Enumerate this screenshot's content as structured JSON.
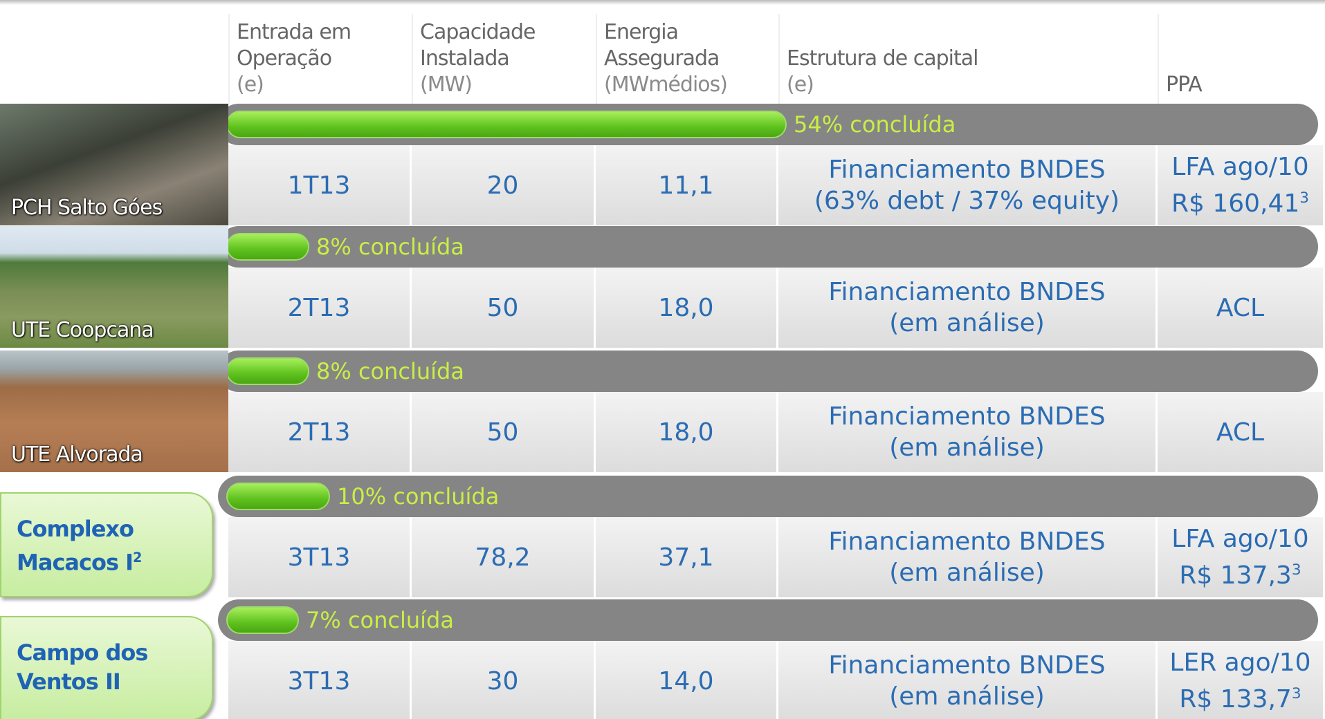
{
  "header": {
    "columns": [
      {
        "title": [
          "Entrada em",
          "Operação"
        ],
        "unit": "(e)"
      },
      {
        "title": [
          "Capacidade",
          "Instalada"
        ],
        "unit": "(MW)"
      },
      {
        "title": [
          "Energia",
          "Assegurada"
        ],
        "unit": "(MWmédios)"
      },
      {
        "title": [
          "Estrutura de capital"
        ],
        "unit": "(e)"
      },
      {
        "title": [
          "PPA"
        ]
      }
    ]
  },
  "rows": [
    {
      "name": [
        "PCH Salto Góes"
      ],
      "progress": 54,
      "progress_label": "54% concluída",
      "cells": [
        [
          "1T13"
        ],
        [
          "20"
        ],
        [
          "11,1"
        ],
        [
          "Financiamento BNDES",
          "(63% debt / 37% equity)"
        ],
        [
          "LFA ago/10",
          "R$ 160,41"
        ]
      ],
      "ppa_note": "3"
    },
    {
      "name": [
        "UTE Coopcana"
      ],
      "progress": 8,
      "progress_label": "8% concluída",
      "cells": [
        [
          "2T13"
        ],
        [
          "50"
        ],
        [
          "18,0"
        ],
        [
          "Financiamento BNDES",
          "(em análise)"
        ],
        [
          "ACL"
        ]
      ]
    },
    {
      "name": [
        "UTE Alvorada"
      ],
      "progress": 8,
      "progress_label": "8% concluída",
      "cells": [
        [
          "2T13"
        ],
        [
          "50"
        ],
        [
          "18,0"
        ],
        [
          "Financiamento BNDES",
          "(em análise)"
        ],
        [
          "ACL"
        ]
      ]
    },
    {
      "name": [
        "Complexo",
        "Macacos I"
      ],
      "name_note": "2",
      "progress": 10,
      "progress_label": "10% concluída",
      "cells": [
        [
          "3T13"
        ],
        [
          "78,2"
        ],
        [
          "37,1"
        ],
        [
          "Financiamento BNDES",
          "(em análise)"
        ],
        [
          "LFA ago/10",
          "R$ 137,3"
        ]
      ],
      "ppa_note": "3"
    },
    {
      "name": [
        "Campo dos",
        "Ventos II"
      ],
      "progress": 7,
      "progress_label": "7% concluída",
      "cells": [
        [
          "3T13"
        ],
        [
          "30"
        ],
        [
          "14,0"
        ],
        [
          "Financiamento BNDES",
          "(em análise)"
        ],
        [
          "LER ago/10",
          "R$ 133,7"
        ]
      ],
      "ppa_note": "3"
    }
  ]
}
